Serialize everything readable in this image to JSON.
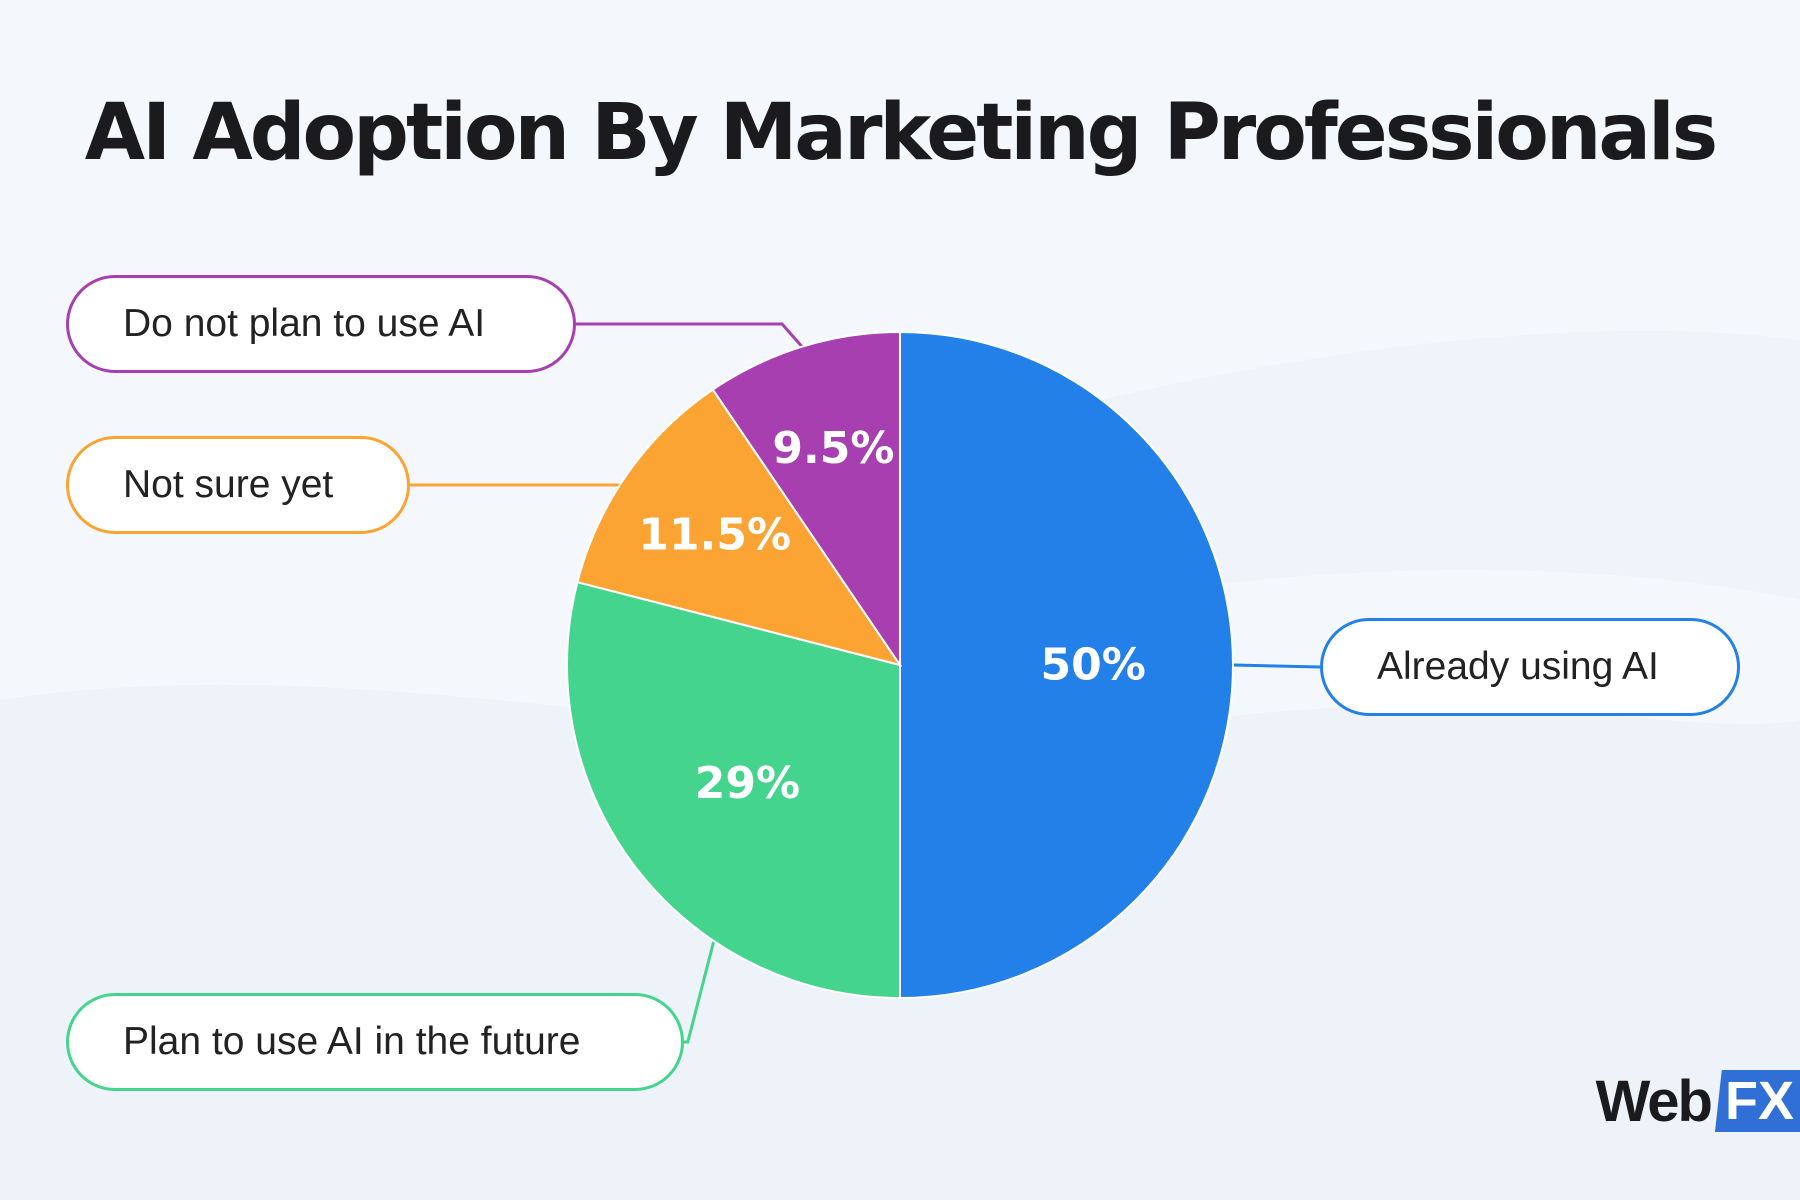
{
  "chart_data": {
    "type": "pie",
    "title": "AI Adoption By Marketing Professionals",
    "slices": [
      {
        "label": "Already using AI",
        "value": 50,
        "value_label": "50%",
        "color": "#2380e8"
      },
      {
        "label": "Plan to use AI in the future",
        "value": 29,
        "value_label": "29%",
        "color": "#45d48e"
      },
      {
        "label": "Not sure yet",
        "value": 11.5,
        "value_label": "11.5%",
        "color": "#fba333"
      },
      {
        "label": "Do not plan to use AI",
        "value": 9.5,
        "value_label": "9.5%",
        "color": "#a83fb0"
      }
    ],
    "start_angle_deg": 0,
    "direction": "clockwise"
  },
  "brand": {
    "logo_text_1": "Web",
    "logo_text_2": "FX",
    "logo_accent_color": "#2f6fd6"
  }
}
